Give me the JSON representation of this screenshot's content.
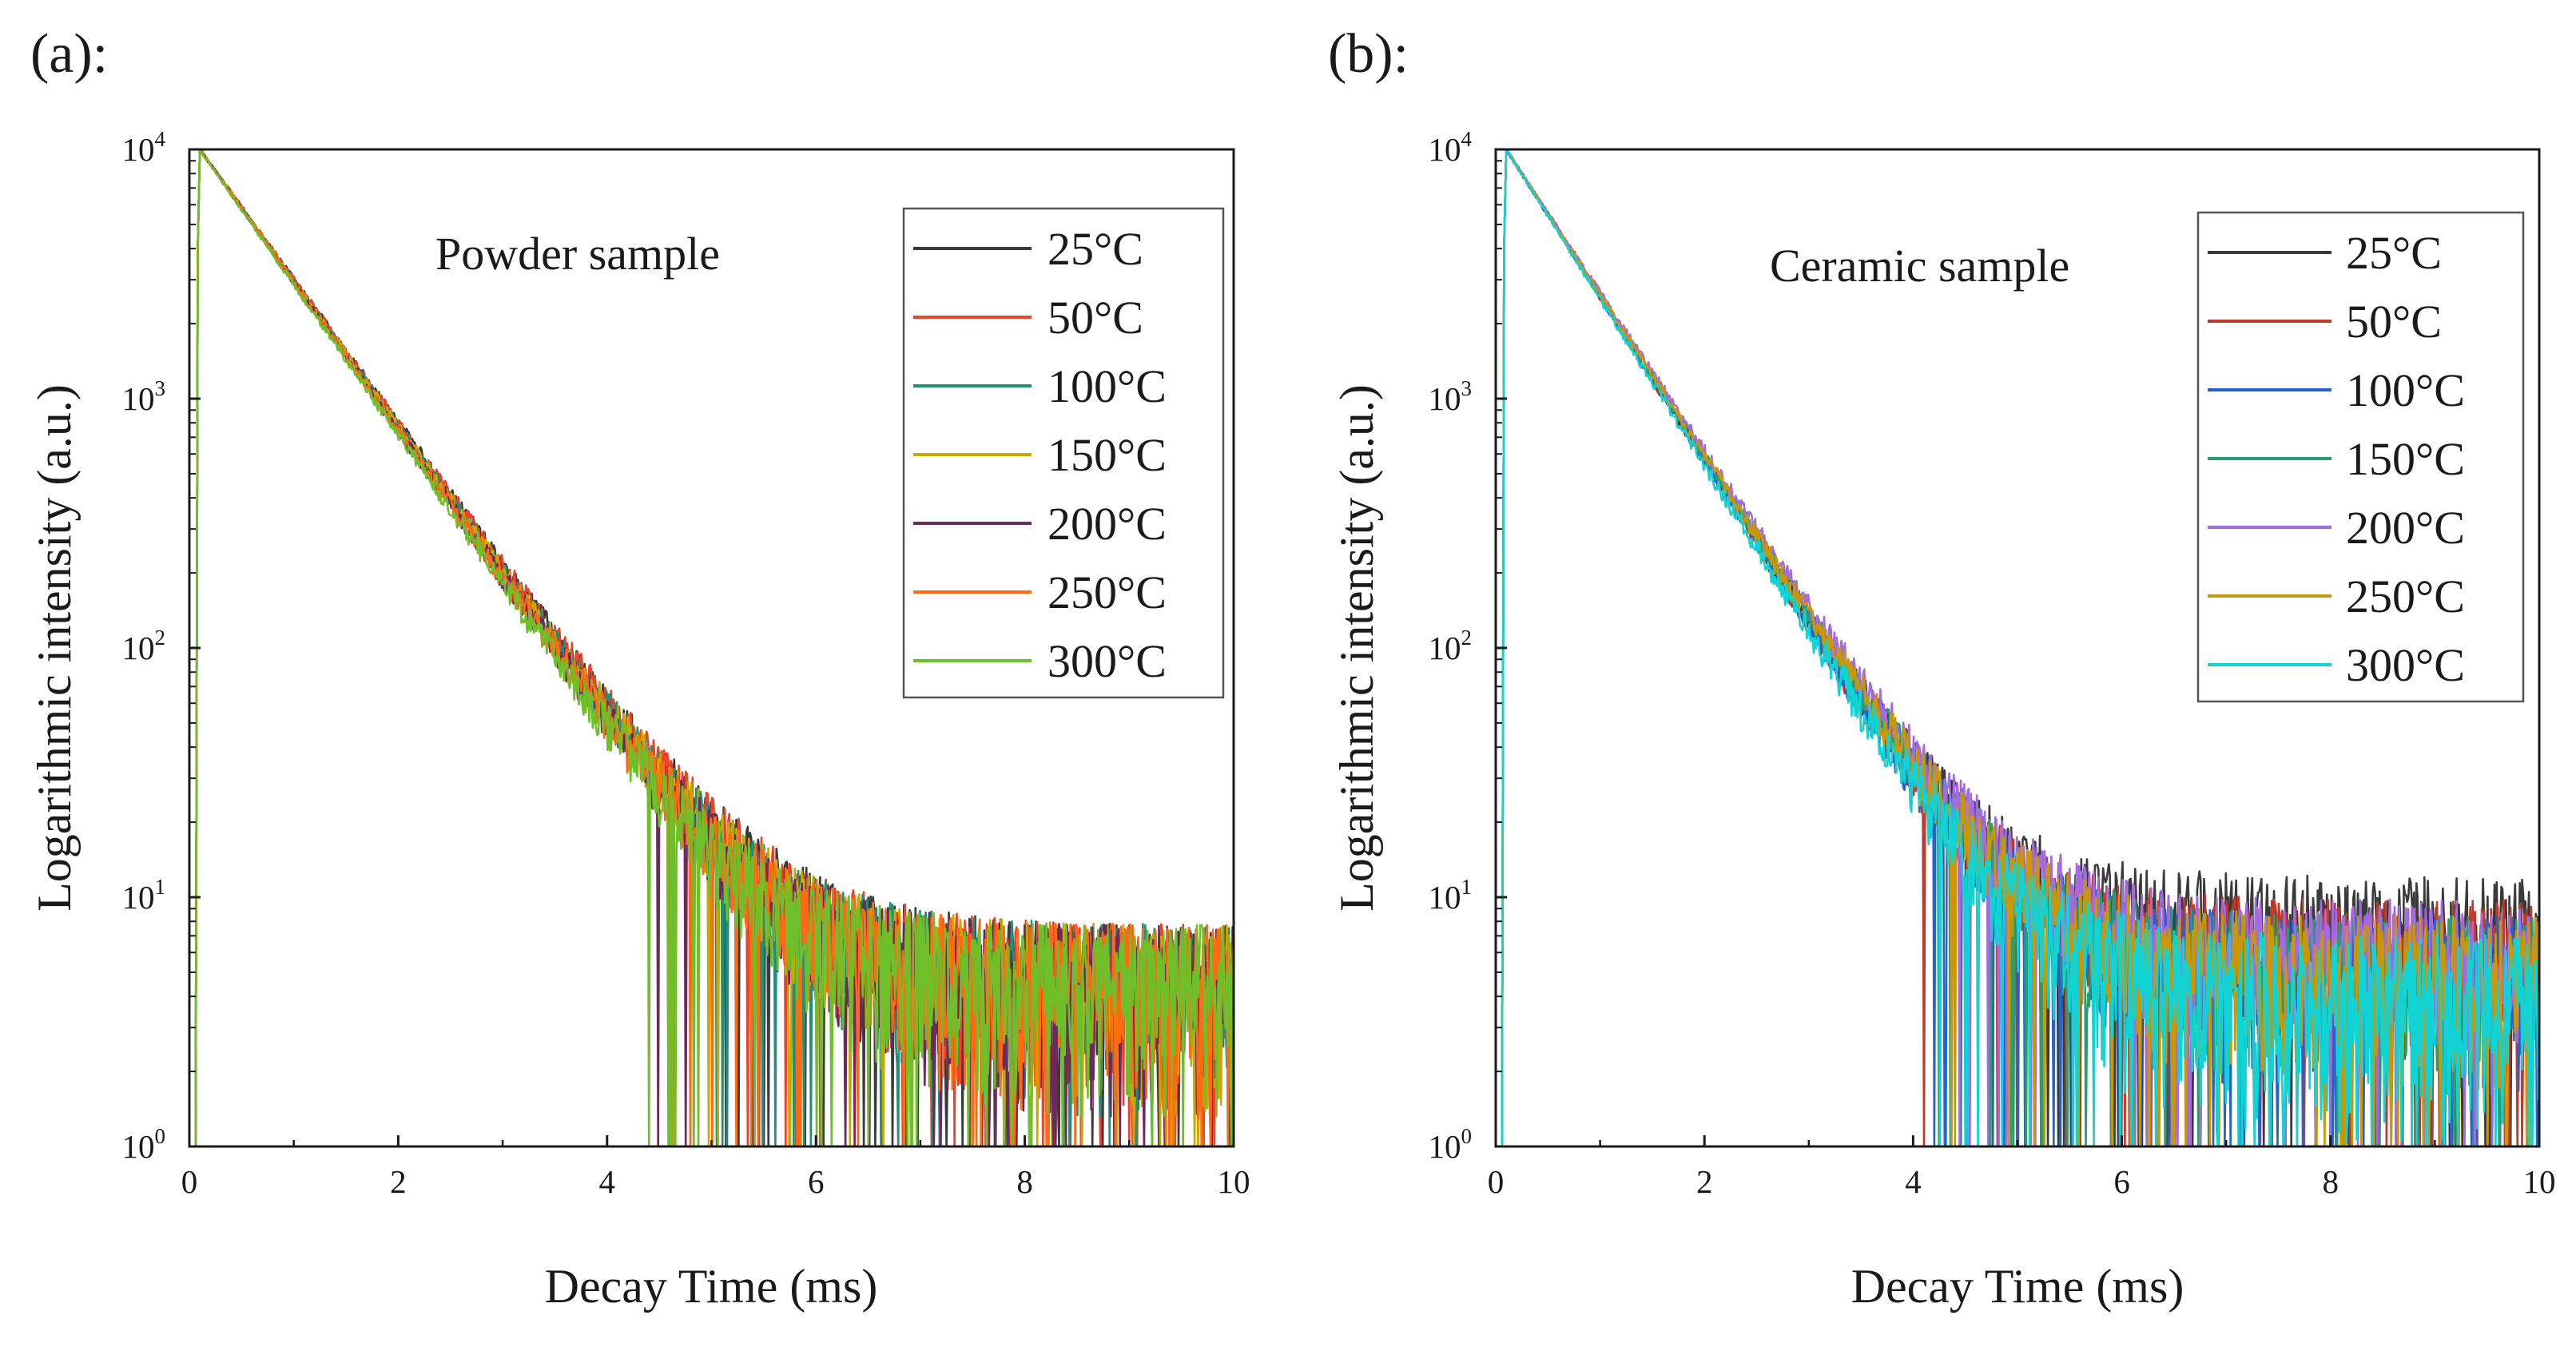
{
  "chart_data": [
    {
      "type": "line",
      "panel_label": "(a):",
      "annotation": "Powder sample",
      "xlabel": "Decay Time (ms)",
      "ylabel": "Logarithmic intensity (a.u.)",
      "xscale": "linear",
      "yscale": "log",
      "xlim": [
        0,
        10
      ],
      "ylim": [
        1,
        10000
      ],
      "xticks": [
        0,
        2,
        4,
        6,
        8,
        10
      ],
      "xtick_labels": [
        "0",
        "2",
        "4",
        "6",
        "8",
        "10"
      ],
      "ytick_labels": [
        {
          "base": "10",
          "exp": "0"
        },
        {
          "base": "10",
          "exp": "1"
        },
        {
          "base": "10",
          "exp": "2"
        },
        {
          "base": "10",
          "exp": "3"
        },
        {
          "base": "10",
          "exp": "4"
        }
      ],
      "legend_position": "top-right",
      "series": [
        {
          "name": "25°C",
          "color": "#3a3a3a",
          "peak": 10000,
          "tau_ms": 0.75,
          "background": 4.5
        },
        {
          "name": "50°C",
          "color": "#e8442c",
          "peak": 10000,
          "tau_ms": 0.75,
          "background": 4.5
        },
        {
          "name": "100°C",
          "color": "#1f8f7a",
          "peak": 10000,
          "tau_ms": 0.74,
          "background": 4.5
        },
        {
          "name": "150°C",
          "color": "#c9a800",
          "peak": 10000,
          "tau_ms": 0.74,
          "background": 4.5
        },
        {
          "name": "200°C",
          "color": "#6b2a5c",
          "peak": 10000,
          "tau_ms": 0.73,
          "background": 4.5
        },
        {
          "name": "250°C",
          "color": "#ff6a13",
          "peak": 10000,
          "tau_ms": 0.73,
          "background": 4.5
        },
        {
          "name": "300°C",
          "color": "#6fbf2a",
          "peak": 10000,
          "tau_ms": 0.72,
          "background": 4.5
        }
      ]
    },
    {
      "type": "line",
      "panel_label": "(b):",
      "annotation": "Ceramic sample",
      "xlabel": "Decay Time (ms)",
      "ylabel": "Logarithmic intensity (a.u.)",
      "xscale": "linear",
      "yscale": "log",
      "xlim": [
        0,
        10
      ],
      "ylim": [
        1,
        10000
      ],
      "xticks": [
        0,
        2,
        4,
        6,
        8,
        10
      ],
      "xtick_labels": [
        "0",
        "2",
        "4",
        "6",
        "8",
        "10"
      ],
      "ytick_labels": [
        {
          "base": "10",
          "exp": "0"
        },
        {
          "base": "10",
          "exp": "1"
        },
        {
          "base": "10",
          "exp": "2"
        },
        {
          "base": "10",
          "exp": "3"
        },
        {
          "base": "10",
          "exp": "4"
        }
      ],
      "legend_position": "top-right",
      "series": [
        {
          "name": "25°C",
          "color": "#3a3a3a",
          "peak": 10000,
          "tau_ms": 0.66,
          "background": 8
        },
        {
          "name": "50°C",
          "color": "#c0392b",
          "peak": 10000,
          "tau_ms": 0.66,
          "background": 6
        },
        {
          "name": "100°C",
          "color": "#2563c9",
          "peak": 10000,
          "tau_ms": 0.66,
          "background": 5
        },
        {
          "name": "150°C",
          "color": "#2a9d6f",
          "peak": 10000,
          "tau_ms": 0.67,
          "background": 5
        },
        {
          "name": "200°C",
          "color": "#a46be0",
          "peak": 10000,
          "tau_ms": 0.68,
          "background": 6
        },
        {
          "name": "250°C",
          "color": "#c9980a",
          "peak": 10000,
          "tau_ms": 0.67,
          "background": 5
        },
        {
          "name": "300°C",
          "color": "#12d3d3",
          "peak": 10000,
          "tau_ms": 0.65,
          "background": 4
        }
      ]
    }
  ]
}
